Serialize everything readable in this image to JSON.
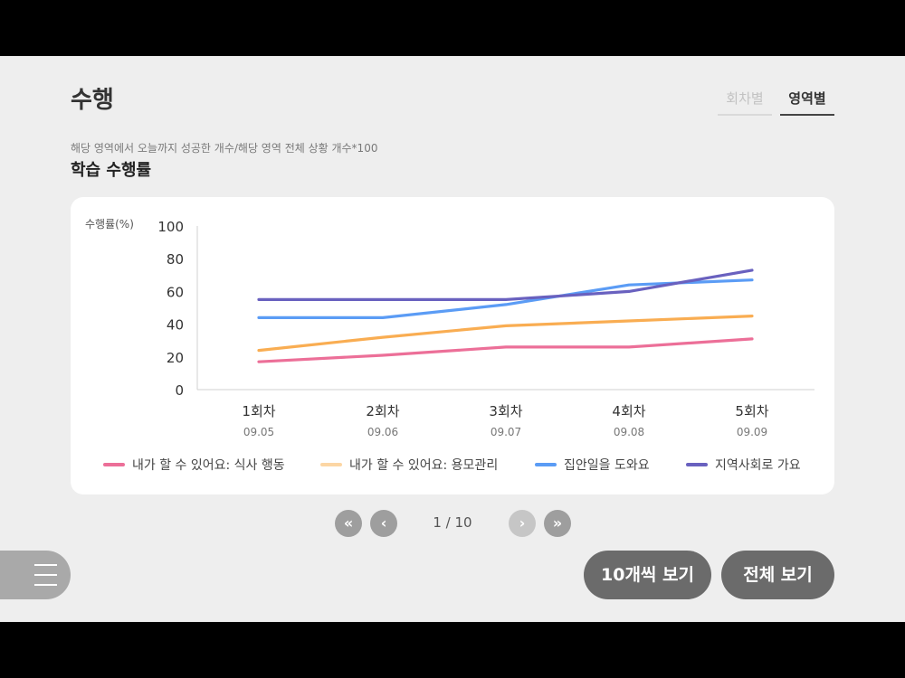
{
  "page": {
    "title": "수행"
  },
  "segmented": {
    "options": [
      "회차별",
      "영역별"
    ],
    "selected": "영역별"
  },
  "section": {
    "formula": "해당 영역에서 오늘까지 성공한 개수/해당 영역 전체 상황 개수*100",
    "title": "학습 수행률"
  },
  "chart_data": {
    "type": "line",
    "ylabel": "수행률(%)",
    "ylim": [
      0,
      100
    ],
    "yticks": [
      0,
      20,
      40,
      60,
      80,
      100
    ],
    "categories": [
      "1회차",
      "2회차",
      "3회차",
      "4회차",
      "5회차"
    ],
    "dates": [
      "09.05",
      "09.06",
      "09.07",
      "09.08",
      "09.09"
    ],
    "legend_position": "bottom",
    "series": [
      {
        "name": "내가 할 수 있어요: 식사 행동",
        "color": "#ec6f98",
        "values": [
          17,
          21,
          26,
          26,
          31
        ]
      },
      {
        "name": "내가 할 수 있어요: 용모관리",
        "color": "#f9ad52",
        "legend_color": "#fcd6a4",
        "values": [
          24,
          32,
          39,
          42,
          45
        ]
      },
      {
        "name": "집안일을 도와요",
        "color": "#5b9cf5",
        "values": [
          44,
          44,
          52,
          64,
          67
        ]
      },
      {
        "name": "지역사회로 가요",
        "color": "#6961bf",
        "values": [
          55,
          55,
          55,
          60,
          73
        ]
      }
    ]
  },
  "pager": {
    "first_icon": "double-chevron-left-icon",
    "prev_icon": "chevron-left-icon",
    "next_icon": "chevron-right-icon",
    "last_icon": "double-chevron-right-icon",
    "info": "1 / 10"
  },
  "menu": {
    "icon": "hamburger-icon"
  },
  "buttons": {
    "ten_label": "10개씩 보기",
    "all_label": "전체 보기"
  }
}
